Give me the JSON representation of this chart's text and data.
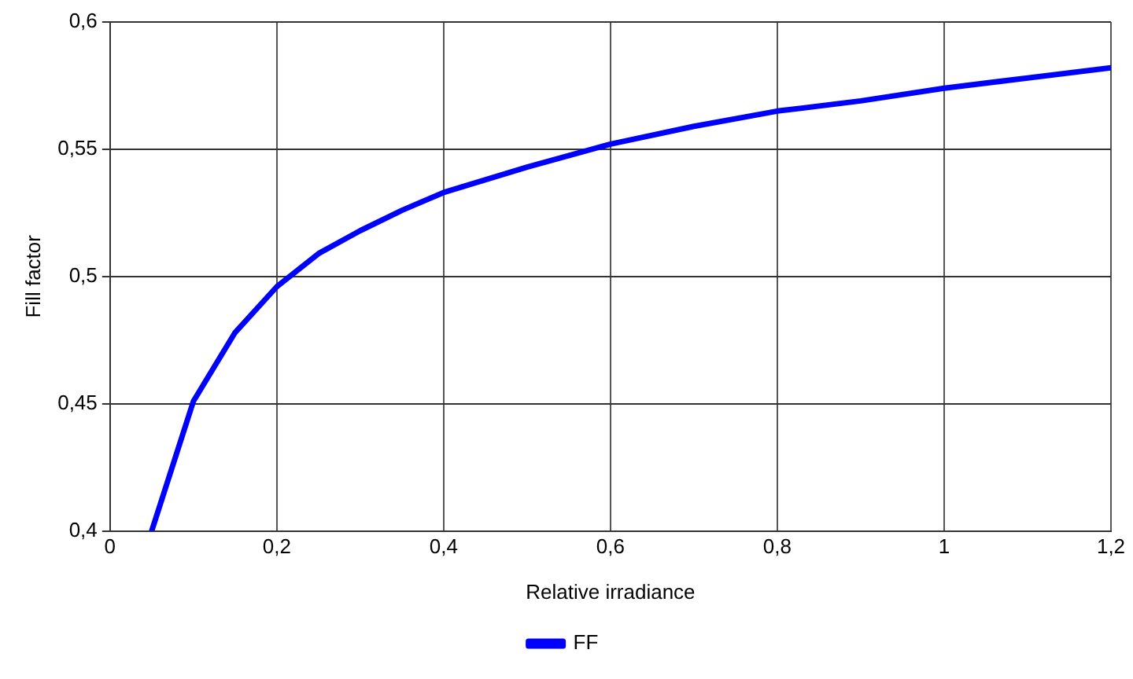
{
  "chart_data": {
    "type": "line",
    "xlabel": "Relative irradiance",
    "ylabel": "Fill factor",
    "x": [
      0.05,
      0.1,
      0.15,
      0.2,
      0.25,
      0.3,
      0.35,
      0.4,
      0.5,
      0.6,
      0.7,
      0.8,
      0.9,
      1.0,
      1.1,
      1.2
    ],
    "series": [
      {
        "name": "FF",
        "color": "#0000ff",
        "values": [
          0.4,
          0.451,
          0.478,
          0.496,
          0.509,
          0.518,
          0.526,
          0.533,
          0.543,
          0.552,
          0.559,
          0.565,
          0.569,
          0.574,
          0.578,
          0.582
        ]
      }
    ],
    "xlim": [
      0,
      1.2
    ],
    "xticks": [
      {
        "value": 0,
        "label": "0"
      },
      {
        "value": 0.2,
        "label": "0,2"
      },
      {
        "value": 0.4,
        "label": "0,4"
      },
      {
        "value": 0.6,
        "label": "0,6"
      },
      {
        "value": 0.8,
        "label": "0,8"
      },
      {
        "value": 1,
        "label": "1"
      },
      {
        "value": 1.2,
        "label": "1,2"
      }
    ],
    "ylim": [
      0.4,
      0.6
    ],
    "yticks": [
      {
        "value": 0.4,
        "label": "0,4"
      },
      {
        "value": 0.45,
        "label": "0,45"
      },
      {
        "value": 0.5,
        "label": "0,5"
      },
      {
        "value": 0.55,
        "label": "0,55"
      },
      {
        "value": 0.6,
        "label": "0,6"
      }
    ],
    "grid": true,
    "legend": "bottom",
    "marker": "none",
    "line_style": "solid"
  }
}
